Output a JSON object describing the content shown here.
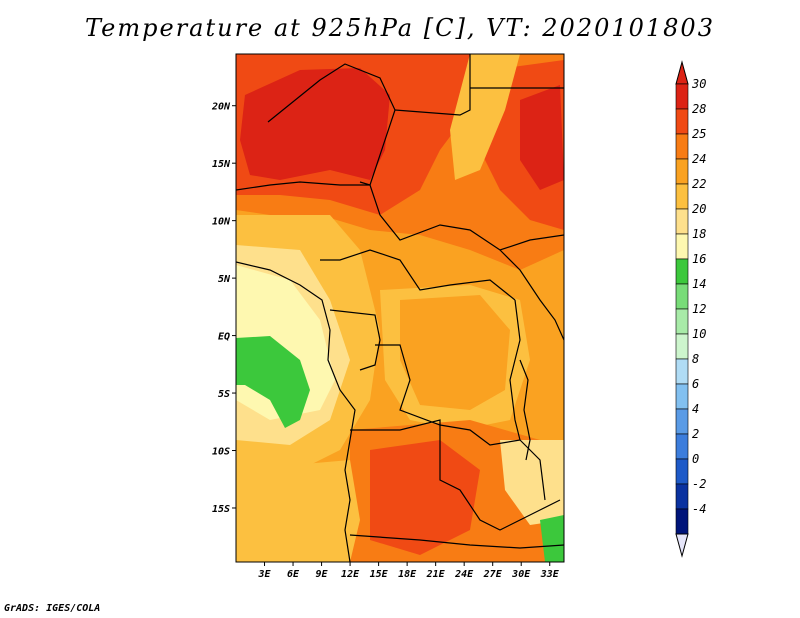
{
  "title": "Temperature at 925hPa [C], VT: 2020101803",
  "footer": "GrADS: IGES/COLA",
  "map": {
    "lat_labels": [
      "20N",
      "15N",
      "10N",
      "5N",
      "EQ",
      "5S",
      "10S",
      "15S"
    ],
    "lat_values": [
      20,
      15,
      10,
      5,
      0,
      -5,
      -10,
      -15
    ],
    "lon_labels": [
      "3E",
      "6E",
      "9E",
      "12E",
      "15E",
      "18E",
      "21E",
      "24E",
      "27E",
      "30E",
      "33E"
    ],
    "lon_values": [
      3,
      6,
      9,
      12,
      15,
      18,
      21,
      24,
      27,
      30,
      33
    ],
    "lon_range": [
      0,
      34.5
    ],
    "lat_range": [
      -19.7,
      24.5
    ]
  },
  "colorbar": {
    "labels": [
      "30",
      "28",
      "25",
      "24",
      "22",
      "20",
      "18",
      "16",
      "14",
      "12",
      "10",
      "8",
      "6",
      "4",
      "2",
      "0",
      "-2",
      "-4"
    ],
    "colors": [
      "#dc2315",
      "#f04a14",
      "#f87c14",
      "#faa221",
      "#fcc040",
      "#fee08c",
      "#fef8b0",
      "#3cc83c",
      "#78dc78",
      "#a8eba8",
      "#cdf5cd",
      "#b0dcf5",
      "#82c0f0",
      "#5a9be6",
      "#3c7ddc",
      "#1e5ac8",
      "#0a32a0",
      "#00147a"
    ],
    "top_color": "#dc2315",
    "bottom_color": "#e6e6fa"
  },
  "colors": {
    "deep_red": "#dc2315",
    "red_orange": "#f04a14",
    "orange": "#f87c14",
    "light_orange": "#faa221",
    "gold": "#fcc040",
    "pale_yellow": "#fee08c",
    "cream": "#fef8b0",
    "green": "#3cc83c"
  }
}
